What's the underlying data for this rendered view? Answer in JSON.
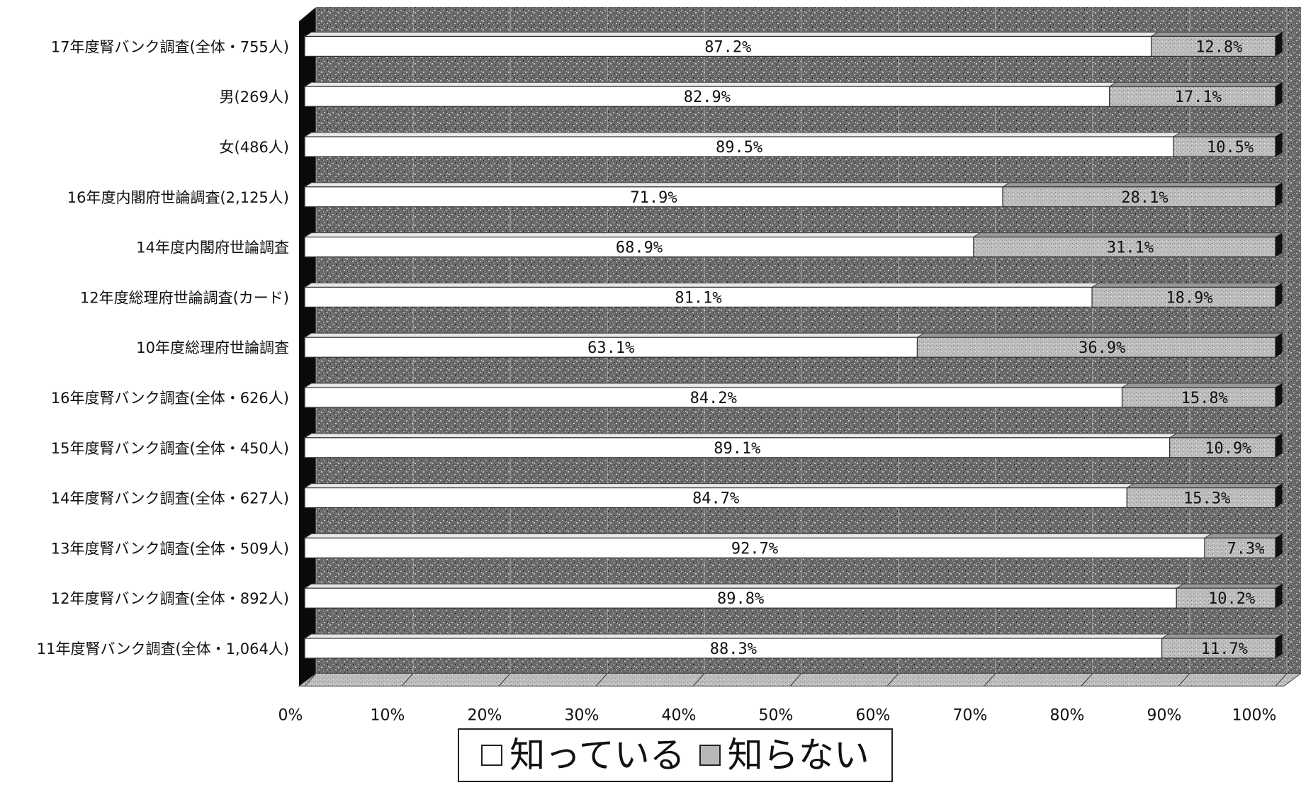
{
  "chart_data": {
    "type": "bar",
    "orientation": "horizontal",
    "stacked": "percent",
    "categories": [
      "17年度腎バンク調査(全体・755人)",
      "男(269人)",
      "女(486人)",
      "16年度内閣府世論調査(2,125人)",
      "14年度内閣府世論調査",
      "12年度総理府世論調査(カード)",
      "10年度総理府世論調査",
      "16年度腎バンク調査(全体・626人)",
      "15年度腎バンク調査(全体・450人)",
      "14年度腎バンク調査(全体・627人)",
      "13年度腎バンク調査(全体・509人)",
      "12年度腎バンク調査(全体・892人)",
      "11年度腎バンク調査(全体・1,064人)"
    ],
    "series": [
      {
        "name": "知っている",
        "color": "#ffffff",
        "values": [
          87.2,
          82.9,
          89.5,
          71.9,
          68.9,
          81.1,
          63.1,
          84.2,
          89.1,
          84.7,
          92.7,
          89.8,
          88.3
        ],
        "labels": [
          "87.2%",
          "82.9%",
          "89.5%",
          "71.9%",
          "68.9%",
          "81.1%",
          "63.1%",
          "84.2%",
          "89.1%",
          "84.7%",
          "92.7%",
          "89.8%",
          "88.3%"
        ]
      },
      {
        "name": "知らない",
        "color": "#b8b8b8",
        "values": [
          12.8,
          17.1,
          10.5,
          28.1,
          31.1,
          18.9,
          36.9,
          15.8,
          10.9,
          15.3,
          7.3,
          10.2,
          11.7
        ],
        "labels": [
          "12.8%",
          "17.1%",
          "10.5%",
          "28.1%",
          "31.1%",
          "18.9%",
          "36.9%",
          "15.8%",
          "10.9%",
          "15.3%",
          "7.3%",
          "10.2%",
          "11.7%"
        ]
      }
    ],
    "xticks": [
      "0%",
      "10%",
      "20%",
      "30%",
      "40%",
      "50%",
      "60%",
      "70%",
      "80%",
      "90%",
      "100%"
    ],
    "xlim": [
      0,
      100
    ],
    "grid": true,
    "legend_position": "bottom",
    "title": "",
    "xlabel": "",
    "ylabel": ""
  }
}
